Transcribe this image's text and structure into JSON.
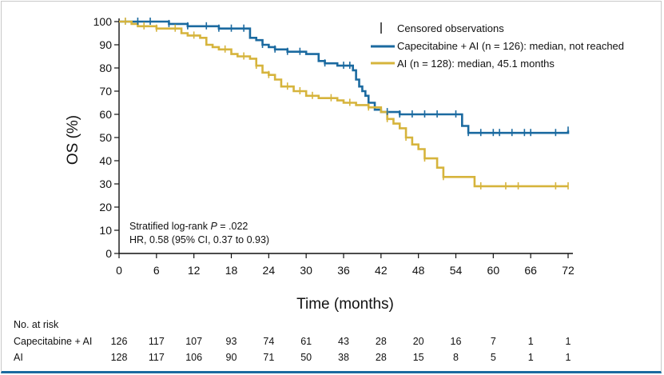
{
  "chart_data": {
    "type": "line",
    "subtype": "kaplan-meier",
    "xlabel": "Time (months)",
    "ylabel": "OS (%)",
    "xlim": [
      0,
      72
    ],
    "ylim": [
      0,
      100
    ],
    "xticks": [
      0,
      6,
      12,
      18,
      24,
      30,
      36,
      42,
      48,
      54,
      60,
      66,
      72
    ],
    "yticks": [
      0,
      10,
      20,
      30,
      40,
      50,
      60,
      70,
      80,
      90,
      100
    ],
    "legend": {
      "position": "top-right",
      "censored_label": "Censored observations"
    },
    "series": [
      {
        "name": "Capecitabine + AI (n = 126): median, not reached",
        "color": "#1b6aa0",
        "steps": [
          [
            0,
            100
          ],
          [
            7,
            100
          ],
          [
            8,
            99
          ],
          [
            10,
            99
          ],
          [
            11,
            98
          ],
          [
            15,
            98
          ],
          [
            16,
            97
          ],
          [
            20,
            97
          ],
          [
            21,
            93
          ],
          [
            22,
            92
          ],
          [
            23,
            90
          ],
          [
            24,
            89
          ],
          [
            25,
            88
          ],
          [
            27,
            87
          ],
          [
            30,
            86
          ],
          [
            32,
            83
          ],
          [
            33,
            82
          ],
          [
            35,
            81
          ],
          [
            37,
            81
          ],
          [
            37.5,
            79
          ],
          [
            38,
            75
          ],
          [
            38.5,
            72
          ],
          [
            39,
            70
          ],
          [
            39.5,
            68
          ],
          [
            40,
            65
          ],
          [
            41,
            62
          ],
          [
            42,
            61
          ],
          [
            45,
            60
          ],
          [
            54,
            60
          ],
          [
            55,
            55
          ],
          [
            56,
            52
          ],
          [
            72,
            53
          ]
        ],
        "censored": [
          1,
          3,
          5,
          8,
          11,
          14,
          16,
          18,
          20,
          23,
          25,
          27,
          29,
          33,
          36,
          37,
          43,
          45,
          47,
          49,
          51,
          54,
          56,
          58,
          60,
          61,
          63,
          65,
          66,
          70,
          72
        ]
      },
      {
        "name": "AI (n = 128): median, 45.1 months",
        "color": "#d6b43c",
        "steps": [
          [
            0,
            100
          ],
          [
            2,
            99
          ],
          [
            3,
            98
          ],
          [
            6,
            97
          ],
          [
            9,
            97
          ],
          [
            10,
            95
          ],
          [
            11,
            94
          ],
          [
            13,
            93
          ],
          [
            14,
            90
          ],
          [
            15,
            89
          ],
          [
            16,
            88
          ],
          [
            18,
            86
          ],
          [
            19,
            85
          ],
          [
            21,
            84
          ],
          [
            22,
            81
          ],
          [
            23,
            78
          ],
          [
            24,
            77
          ],
          [
            25,
            75
          ],
          [
            26,
            72
          ],
          [
            28,
            70
          ],
          [
            30,
            68
          ],
          [
            32,
            67
          ],
          [
            35,
            66
          ],
          [
            36,
            65
          ],
          [
            38,
            64
          ],
          [
            40,
            63
          ],
          [
            42,
            61
          ],
          [
            43,
            58
          ],
          [
            44,
            56
          ],
          [
            45,
            54
          ],
          [
            46,
            50
          ],
          [
            47,
            47
          ],
          [
            48,
            45
          ],
          [
            49,
            41
          ],
          [
            51,
            37
          ],
          [
            52,
            33
          ],
          [
            56,
            33
          ],
          [
            57,
            29
          ],
          [
            72,
            29
          ]
        ],
        "censored": [
          1,
          4,
          6,
          9,
          12,
          17,
          20,
          22,
          24,
          27,
          29,
          31,
          34,
          37,
          40,
          43,
          46,
          49,
          52,
          58,
          62,
          64,
          70,
          72
        ]
      }
    ],
    "annotations": {
      "line1_prefix": "Stratified log-rank ",
      "line1_italic": "P",
      "line1_suffix": " = .022",
      "line2": "HR, 0.58 (95% CI, 0.37 to 0.93)"
    }
  },
  "risk_table": {
    "title": "No. at risk",
    "rows": [
      {
        "label": "Capecitabine + AI",
        "values": [
          "126",
          "117",
          "107",
          "93",
          "74",
          "61",
          "43",
          "28",
          "20",
          "16",
          "7",
          "1",
          "1"
        ]
      },
      {
        "label": "AI",
        "values": [
          "128",
          "117",
          "106",
          "90",
          "71",
          "50",
          "38",
          "28",
          "15",
          "8",
          "5",
          "1",
          "1"
        ]
      }
    ]
  }
}
